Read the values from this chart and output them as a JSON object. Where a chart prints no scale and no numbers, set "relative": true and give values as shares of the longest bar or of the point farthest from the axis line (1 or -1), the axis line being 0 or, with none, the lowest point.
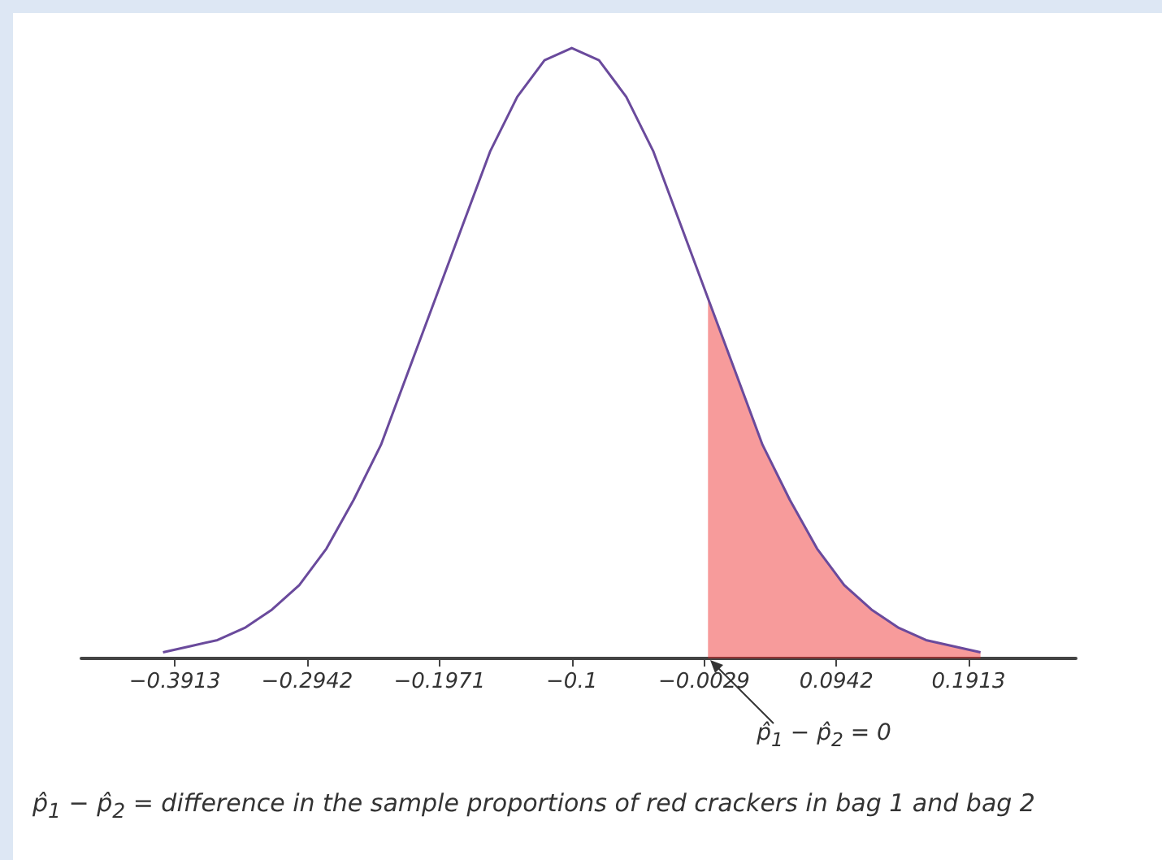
{
  "chart_data": {
    "type": "line",
    "relative": true,
    "grid": false,
    "marker": "none",
    "x": [
      -0.4,
      -0.38,
      -0.36,
      -0.34,
      -0.32,
      -0.3,
      -0.28,
      -0.26,
      -0.24,
      -0.22,
      -0.2,
      -0.18,
      -0.16,
      -0.14,
      -0.12,
      -0.1,
      -0.08,
      -0.06,
      -0.04,
      -0.02,
      0.0,
      0.02,
      0.04,
      0.06,
      0.08,
      0.1,
      0.12,
      0.14,
      0.16,
      0.18,
      0.2
    ],
    "xlim": [
      -0.46,
      0.27
    ],
    "xticks": [
      -0.3913,
      -0.2942,
      -0.1971,
      -0.1,
      -0.0029,
      0.0942,
      0.1913
    ],
    "series": [
      {
        "color": "#6a4a9c",
        "values": [
          0.01,
          0.02,
          0.03,
          0.05,
          0.08,
          0.12,
          0.18,
          0.26,
          0.35,
          0.47,
          0.59,
          0.71,
          0.83,
          0.92,
          0.98,
          1,
          0.98,
          0.92,
          0.83,
          0.71,
          0.59,
          0.47,
          0.35,
          0.26,
          0.18,
          0.12,
          0.08,
          0.05,
          0.03,
          0.02,
          0.01
        ]
      },
      {
        "type": "area",
        "color": "#ee2222",
        "x": [
          0.0,
          0.02,
          0.04,
          0.06,
          0.08,
          0.1,
          0.12,
          0.14,
          0.16,
          0.18,
          0.2
        ],
        "values": [
          0.59,
          0.47,
          0.35,
          0.26,
          0.18,
          0.12,
          0.08,
          0.05,
          0.03,
          0.02,
          0.01
        ]
      }
    ],
    "annotations": [
      "p̂$_{1}$ − p̂$_{2}$ = 0",
      "p̂$_{1}$ − p̂$_{2}$ = difference in the sample proportions of red crackers in bag 1 and bag 2"
    ]
  }
}
